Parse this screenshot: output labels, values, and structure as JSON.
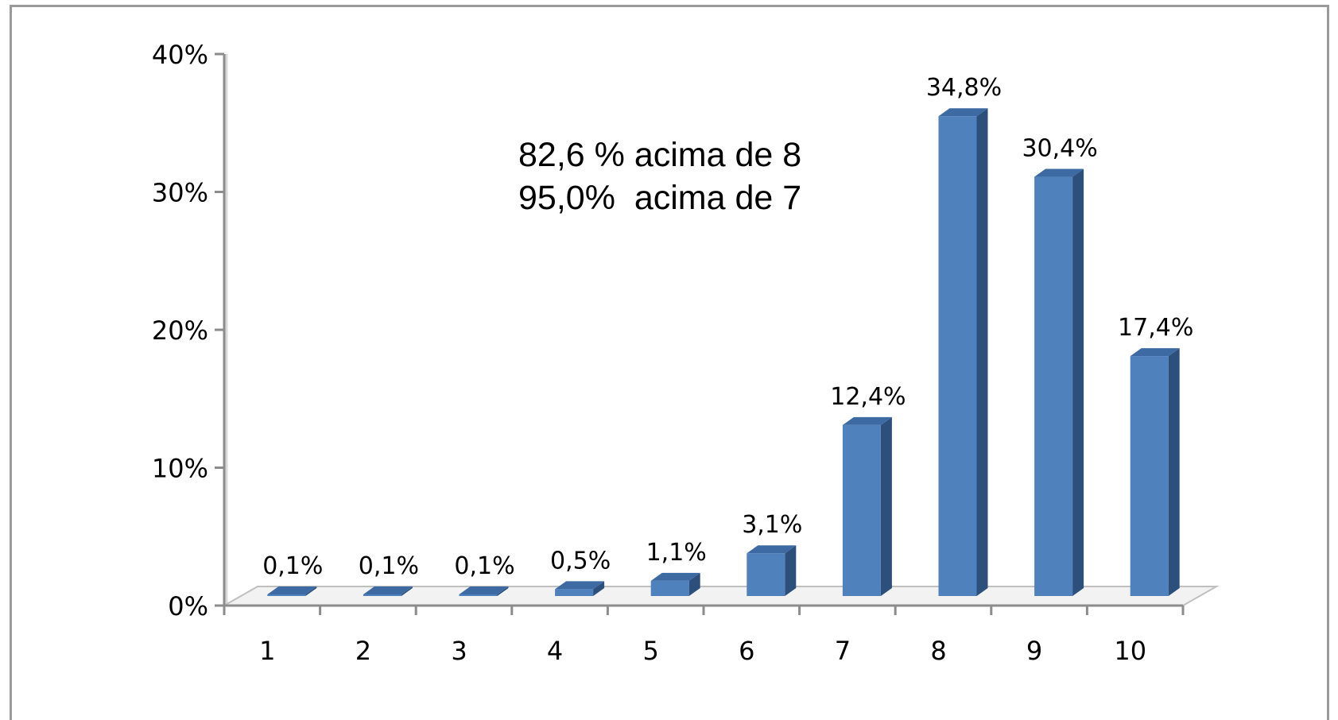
{
  "chart_data": {
    "type": "bar",
    "categories": [
      "1",
      "2",
      "3",
      "4",
      "5",
      "6",
      "7",
      "8",
      "9",
      "10"
    ],
    "values": [
      0.1,
      0.1,
      0.1,
      0.5,
      1.1,
      3.1,
      12.4,
      34.8,
      30.4,
      17.4
    ],
    "data_labels": [
      "0,1%",
      "0,1%",
      "0,1%",
      "0,5%",
      "1,1%",
      "3,1%",
      "12,4%",
      "34,8%",
      "30,4%",
      "17,4%"
    ],
    "y_ticks": [
      "0%",
      "10%",
      "20%",
      "30%",
      "40%"
    ],
    "ylim": [
      0,
      40
    ],
    "title": "",
    "xlabel": "",
    "ylabel": "",
    "grid": false,
    "legend": "none",
    "style": "3d-column",
    "colors": {
      "front": "#4f81bd",
      "side": "#2c4f7c",
      "top": "#3e6aa3"
    },
    "annotations": [
      "82,6 % acima de 8",
      "95,0%  acima de 7"
    ]
  }
}
